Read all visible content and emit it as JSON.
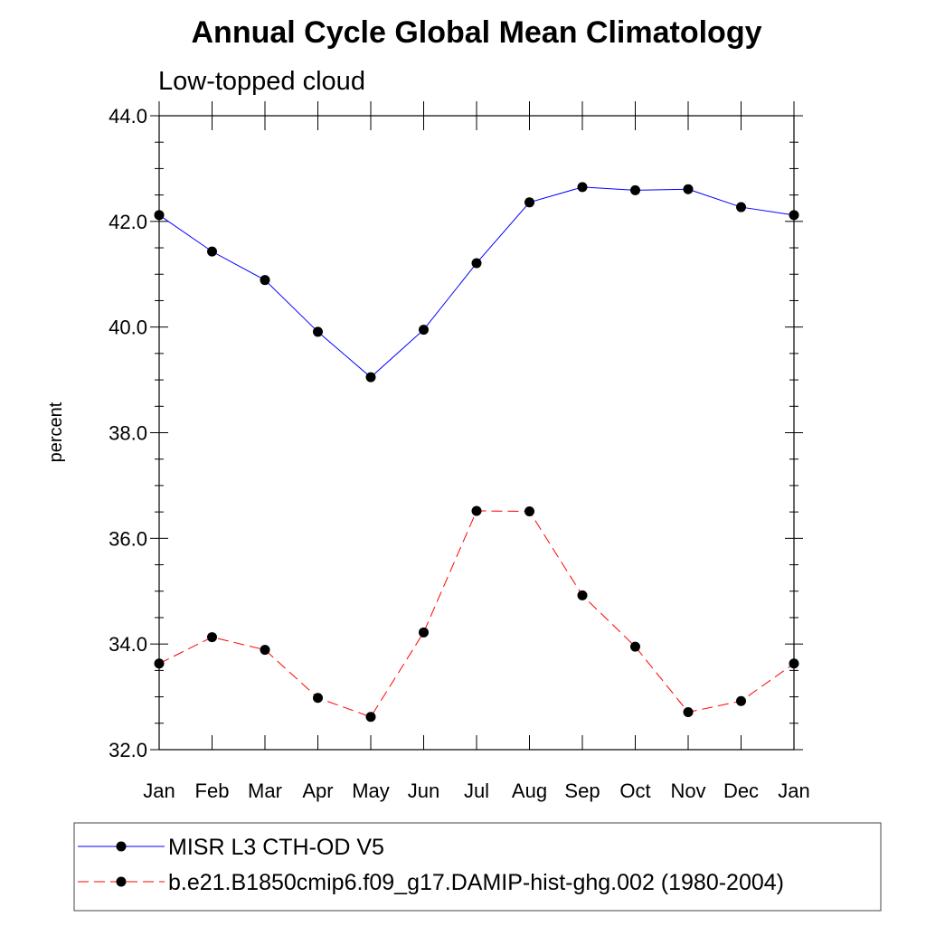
{
  "chart_data": {
    "type": "line",
    "title": "Annual Cycle Global Mean Climatology",
    "subtitle": "Low-topped cloud",
    "xlabel": "",
    "ylabel": "percent",
    "categories": [
      "Jan",
      "Feb",
      "Mar",
      "Apr",
      "May",
      "Jun",
      "Jul",
      "Aug",
      "Sep",
      "Oct",
      "Nov",
      "Dec",
      "Jan"
    ],
    "ylim": [
      32.0,
      44.0
    ],
    "yticks": [
      "32.0",
      "34.0",
      "36.0",
      "38.0",
      "40.0",
      "42.0",
      "44.0"
    ],
    "grid": false,
    "legend_position": "bottom",
    "series": [
      {
        "name": "MISR L3 CTH-OD V5",
        "color": "#0000ff",
        "line_style": "solid",
        "marker": "filled-circle",
        "values": [
          42.12,
          41.43,
          40.89,
          39.91,
          39.05,
          39.95,
          41.21,
          42.36,
          42.65,
          42.59,
          42.61,
          42.27,
          42.12
        ]
      },
      {
        "name": "b.e21.B1850cmip6.f09_g17.DAMIP-hist-ghg.002 (1980-2004)",
        "color": "#ff0000",
        "line_style": "dashed",
        "marker": "filled-circle",
        "values": [
          33.63,
          34.13,
          33.89,
          32.98,
          32.62,
          34.22,
          36.52,
          36.51,
          34.92,
          33.95,
          32.71,
          32.92,
          33.63
        ]
      }
    ]
  }
}
